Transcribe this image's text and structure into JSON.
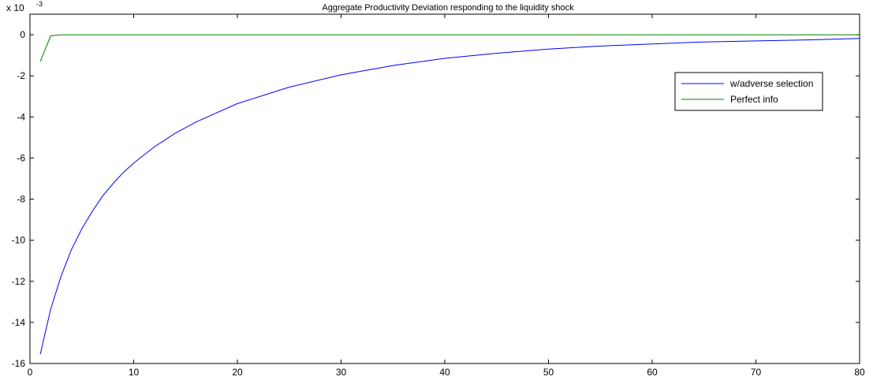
{
  "chart_data": {
    "type": "line",
    "title": "Aggregate Productivity Deviation responding to the liquidity shock",
    "xlabel": "",
    "ylabel": "",
    "y_multiplier_label": "x 10",
    "y_multiplier_exponent": "-3",
    "xlim": [
      0,
      80
    ],
    "ylim": [
      -16,
      1
    ],
    "x_ticks": [
      0,
      10,
      20,
      30,
      40,
      50,
      60,
      70,
      80
    ],
    "y_ticks": [
      0,
      -2,
      -4,
      -6,
      -8,
      -10,
      -12,
      -14,
      -16
    ],
    "grid": false,
    "legend_position": "top-right",
    "series": [
      {
        "name": "w/adverse selection",
        "color": "#0000ff",
        "x": [
          1,
          2,
          3,
          4,
          5,
          6,
          7,
          8,
          9,
          10,
          12,
          14,
          16,
          18,
          20,
          25,
          30,
          35,
          40,
          45,
          50,
          55,
          60,
          65,
          70,
          75,
          80
        ],
        "y": [
          -15.55,
          -13.35,
          -11.75,
          -10.45,
          -9.45,
          -8.6,
          -7.85,
          -7.25,
          -6.7,
          -6.25,
          -5.45,
          -4.8,
          -4.25,
          -3.8,
          -3.35,
          -2.55,
          -1.95,
          -1.5,
          -1.15,
          -0.9,
          -0.7,
          -0.55,
          -0.45,
          -0.35,
          -0.3,
          -0.25,
          -0.18
        ]
      },
      {
        "name": "Perfect info",
        "color": "#008000",
        "x": [
          1,
          2,
          3,
          4,
          5,
          10,
          20,
          40,
          60,
          80
        ],
        "y": [
          -1.3,
          -0.05,
          0.0,
          0.0,
          0.0,
          0.0,
          0.0,
          0.0,
          0.0,
          0.0
        ]
      }
    ]
  }
}
